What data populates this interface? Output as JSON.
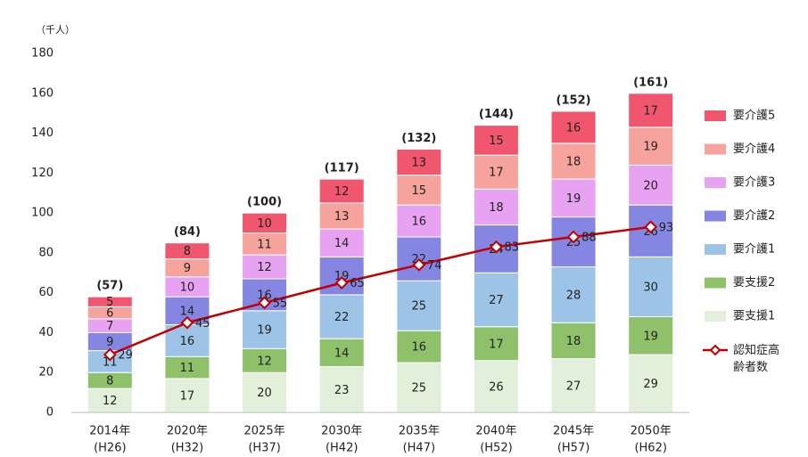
{
  "chart_data": {
    "type": "stacked-bar-line",
    "y_axis_label": "（千人）",
    "categories": [
      [
        "2014年",
        "(H26)"
      ],
      [
        "2020年",
        "(H32)"
      ],
      [
        "2025年",
        "(H37)"
      ],
      [
        "2030年",
        "(H42)"
      ],
      [
        "2035年",
        "(H47)"
      ],
      [
        "2040年",
        "(H52)"
      ],
      [
        "2045年",
        "(H57)"
      ],
      [
        "2050年",
        "(H62)"
      ]
    ],
    "ylim": [
      0,
      180
    ],
    "yticks": [
      0,
      20,
      40,
      60,
      80,
      100,
      120,
      140,
      160,
      180
    ],
    "grid": false,
    "legend": "right",
    "series": [
      {
        "name": "要支援1",
        "color": "#e2efda",
        "values": [
          12,
          17,
          20,
          23,
          25,
          26,
          27,
          29
        ]
      },
      {
        "name": "要支援2",
        "color": "#8fc06a",
        "values": [
          8,
          11,
          12,
          14,
          16,
          17,
          18,
          19
        ]
      },
      {
        "name": "要介護1",
        "color": "#9dc3e6",
        "values": [
          11,
          16,
          19,
          22,
          25,
          27,
          28,
          30
        ]
      },
      {
        "name": "要介護2",
        "color": "#8585e2",
        "values": [
          9,
          14,
          16,
          19,
          22,
          24,
          25,
          26
        ]
      },
      {
        "name": "要介護3",
        "color": "#e8a2f2",
        "values": [
          7,
          10,
          12,
          14,
          16,
          18,
          19,
          20
        ]
      },
      {
        "name": "要介護4",
        "color": "#f5a39c",
        "values": [
          6,
          9,
          11,
          13,
          15,
          17,
          18,
          19
        ]
      },
      {
        "name": "要介護5",
        "color": "#f0566e",
        "values": [
          5,
          8,
          10,
          12,
          13,
          15,
          16,
          17
        ]
      }
    ],
    "totals": {
      "values": [
        57,
        84,
        100,
        117,
        132,
        144,
        152,
        161
      ],
      "value_labels": [
        "(57)",
        "(84)",
        "(100)",
        "(117)",
        "(132)",
        "(144)",
        "(152)",
        "(161)"
      ]
    },
    "line": {
      "name": "認知症高齢者数",
      "color": "#c00000",
      "values": [
        29,
        45,
        55,
        65,
        74,
        83,
        88,
        93
      ]
    }
  }
}
